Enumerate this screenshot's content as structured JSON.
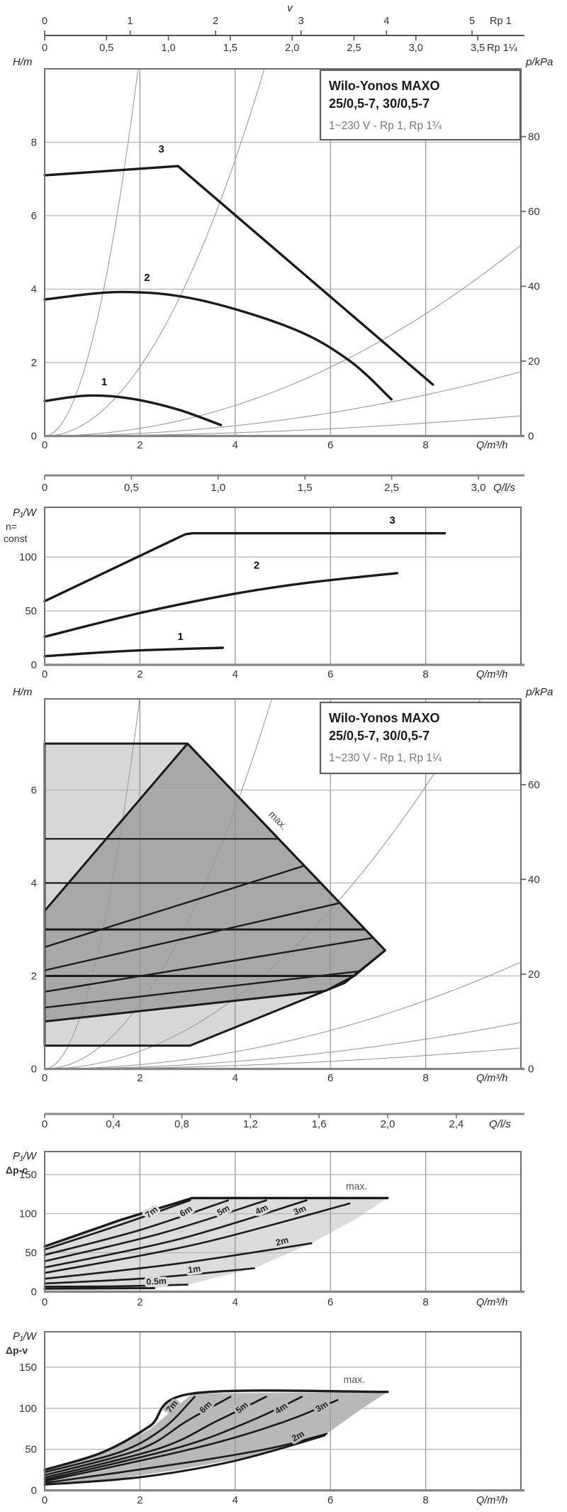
{
  "colors": {
    "ink": "#1b1b1b",
    "frame": "#6f6f6f",
    "grid_h": "#b5b5b5",
    "grid_v": "#8f8f8f",
    "thin_curve": "#9a9a9a",
    "label_gray": "#777777",
    "light_fill": "#d7d7d7",
    "dark_fill": "#a8a8a8",
    "region_dpc": "#dcdcdc",
    "region_dpv": "#b9b9b9"
  },
  "top_scales": {
    "v_label": "v",
    "rp1": {
      "unit": "Rp 1",
      "labels": [
        "0",
        "1",
        "2",
        "3",
        "4",
        "5"
      ]
    },
    "rp114": {
      "unit": "Rp 1¼",
      "labels": [
        "0",
        "0,5",
        "1,0",
        "1,5",
        "2,0",
        "2,5",
        "3,0",
        "3,5"
      ]
    }
  },
  "title_box": {
    "line1": "Wilo-Yonos MAXO",
    "line2": "25/0,5-7, 30/0,5-7",
    "line3": "1~230 V - Rp 1, Rp 1¼"
  },
  "ls_scales": [
    {
      "labels": [
        "0",
        "0,5",
        "1,0",
        "1,5",
        "2,5",
        "3,0"
      ],
      "unit": "Q/l/s"
    },
    {
      "labels": [
        "0",
        "0,4",
        "0,8",
        "1,2",
        "1,6",
        "2,0",
        "2,4"
      ],
      "unit": "Q/l/s"
    }
  ],
  "chart_data": [
    {
      "id": "head-flow",
      "type": "line",
      "ylabel": "H/m",
      "y2label": "p/kPa",
      "xlabel": "Q/m³/h",
      "xlim": [
        0,
        10
      ],
      "ylim": [
        0,
        10
      ],
      "xticks": [
        0,
        2,
        4,
        6,
        8
      ],
      "yticks": [
        2,
        4,
        6,
        8
      ],
      "y2ticks": [
        20,
        40,
        60,
        80
      ],
      "show_title_box": true,
      "system_curves_k": [
        2.6,
        0.47,
        0.052,
        0.0175,
        0.0055
      ],
      "series": [
        {
          "name": "1",
          "smooth": true,
          "points": [
            [
              0,
              0.95
            ],
            [
              0.9,
              1.1
            ],
            [
              1.8,
              1.02
            ],
            [
              2.8,
              0.72
            ],
            [
              3.7,
              0.3
            ]
          ],
          "label_at": [
            1.25,
            1.38
          ]
        },
        {
          "name": "2",
          "smooth": true,
          "points": [
            [
              0,
              3.72
            ],
            [
              1.6,
              3.92
            ],
            [
              3.2,
              3.72
            ],
            [
              5.2,
              2.93
            ],
            [
              6.4,
              2.05
            ],
            [
              7.28,
              1.0
            ]
          ],
          "label_at": [
            2.15,
            4.22
          ]
        },
        {
          "name": "3",
          "smooth": false,
          "points": [
            [
              0,
              7.1
            ],
            [
              2.8,
              7.35
            ],
            [
              8.15,
              1.4
            ]
          ],
          "label_at": [
            2.45,
            7.72
          ]
        }
      ]
    },
    {
      "id": "power-n-const",
      "type": "line",
      "ylabel": "P₁/W",
      "mode_label1": "n=",
      "mode_label2": "const",
      "xlabel": "Q/m³/h",
      "xlim": [
        0,
        10
      ],
      "ylim": [
        0,
        146
      ],
      "xticks": [
        0,
        2,
        4,
        6,
        8
      ],
      "yticks": [
        50,
        100
      ],
      "series": [
        {
          "name": "1",
          "smooth": true,
          "points": [
            [
              0,
              8
            ],
            [
              1.8,
              13
            ],
            [
              3.74,
              15.8
            ]
          ],
          "label_at": [
            2.85,
            23
          ]
        },
        {
          "name": "2",
          "smooth": true,
          "points": [
            [
              0,
              26
            ],
            [
              2,
              48
            ],
            [
              4,
              66
            ],
            [
              5.6,
              76.5
            ],
            [
              7.4,
              85
            ]
          ],
          "label_at": [
            4.45,
            89
          ]
        },
        {
          "name": "3",
          "smooth": false,
          "points": [
            [
              0,
              59
            ],
            [
              2.95,
              121
            ],
            [
              3.1,
              122
            ],
            [
              8.4,
              122
            ]
          ],
          "label_at": [
            7.3,
            131
          ]
        }
      ]
    },
    {
      "id": "duty-window",
      "type": "envelope",
      "ylabel": "H/m",
      "y2label": "p/kPa",
      "xlabel": "Q/m³/h",
      "xlim": [
        0,
        10
      ],
      "ylim": [
        0,
        7.96
      ],
      "xticks": [
        0,
        2,
        4,
        6,
        8
      ],
      "yticks": [
        2,
        4,
        6
      ],
      "y2ticks": [
        20,
        40,
        60
      ],
      "show_title_box": true,
      "system_curves_k": [
        2.0,
        0.35,
        0.095,
        0.023,
        0.01,
        0.0045
      ],
      "outer": [
        [
          0,
          7.0
        ],
        [
          3.0,
          7.0
        ],
        [
          7.15,
          2.55
        ],
        [
          6.3,
          1.85
        ],
        [
          3.05,
          0.5
        ],
        [
          0,
          0.5
        ]
      ],
      "inner": [
        [
          0,
          3.4
        ],
        [
          3.0,
          7.0
        ],
        [
          7.15,
          2.55
        ],
        [
          6.5,
          2.0
        ],
        [
          5.9,
          1.68
        ],
        [
          0,
          1.02
        ]
      ],
      "fan": [
        [
          [
            0,
            1.32
          ],
          [
            6.6,
            2.1
          ]
        ],
        [
          [
            0,
            1.66
          ],
          [
            6.9,
            2.82
          ]
        ],
        [
          [
            0,
            2.12
          ],
          [
            6.2,
            3.57
          ]
        ],
        [
          [
            0,
            2.62
          ],
          [
            5.45,
            4.37
          ]
        ]
      ],
      "hlines": [
        {
          "h": 2,
          "q2": 6.48,
          "w": 3
        },
        {
          "h": 3,
          "q2": 6.73,
          "w": 3
        },
        {
          "h": 4,
          "q2": 5.8,
          "w": 2.2
        },
        {
          "h": 4.95,
          "q2": 4.91,
          "w": 2.2
        }
      ],
      "max_label": {
        "text": "max.",
        "q": 4.85,
        "v": 5.3,
        "rot": 46
      }
    },
    {
      "id": "power-dpc",
      "type": "power-region",
      "ylabel": "P₁/W",
      "mode_label1": "Δp-c",
      "xlabel": "Q/m³/h",
      "xlim": [
        0,
        10
      ],
      "ylim": [
        0,
        178
      ],
      "xticks": [
        0,
        2,
        4,
        6,
        8
      ],
      "yticks": [
        50,
        100,
        150
      ],
      "region_fill_key": "region_dpc",
      "region": [
        [
          0,
          58
        ],
        [
          1.6,
          92
        ],
        [
          3.1,
          120
        ],
        [
          7.2,
          120
        ],
        [
          6.5,
          92
        ],
        [
          5.6,
          62
        ],
        [
          4.4,
          30
        ],
        [
          3.0,
          9
        ],
        [
          2.3,
          4.5
        ],
        [
          0,
          3.8
        ]
      ],
      "curves": [
        {
          "points": [
            [
              0,
              58
            ],
            [
              1.6,
              92
            ],
            [
              3.1,
              120
            ],
            [
              7.2,
              120
            ]
          ],
          "w": 3.4,
          "smooth": false
        },
        {
          "points": [
            [
              0,
              54
            ],
            [
              1.6,
              86
            ],
            [
              3.05,
              117
            ]
          ],
          "label": "7m",
          "label_at": [
            2.28,
            99
          ],
          "rot": -38
        },
        {
          "points": [
            [
              0,
              47
            ],
            [
              2.0,
              79
            ],
            [
              3.85,
              117
            ]
          ],
          "label": "6m",
          "label_at": [
            3.0,
            100
          ],
          "rot": -32
        },
        {
          "points": [
            [
              0,
              39
            ],
            [
              2.4,
              74
            ],
            [
              4.65,
              117
            ]
          ],
          "label": "5m",
          "label_at": [
            3.78,
            101
          ],
          "rot": -28
        },
        {
          "points": [
            [
              0,
              31
            ],
            [
              2.8,
              67
            ],
            [
              5.5,
              117
            ]
          ],
          "label": "4m",
          "label_at": [
            4.58,
            102
          ],
          "rot": -25
        },
        {
          "points": [
            [
              0,
              24
            ],
            [
              3.2,
              61
            ],
            [
              6.4,
              113
            ]
          ],
          "label": "3m",
          "label_at": [
            5.38,
            101
          ],
          "rot": -23
        },
        {
          "points": [
            [
              0,
              16.5
            ],
            [
              2.8,
              36
            ],
            [
              5.6,
              62
            ]
          ],
          "label": "2m",
          "label_at": [
            5.0,
            61
          ],
          "rot": -15
        },
        {
          "points": [
            [
              0,
              10.5
            ],
            [
              2.2,
              17.5
            ],
            [
              4.4,
              30
            ]
          ],
          "label": "1m",
          "label_at": [
            3.15,
            25
          ],
          "rot": -8
        },
        {
          "points": [
            [
              0,
              6.5
            ],
            [
              1.6,
              7
            ],
            [
              3.0,
              9
            ]
          ],
          "label": "0.5m",
          "label_at": [
            2.35,
            9.5
          ],
          "rot": -3
        },
        {
          "points": [
            [
              0,
              3.8
            ],
            [
              2.3,
              4.5
            ]
          ],
          "w": 3,
          "smooth": false
        }
      ],
      "max_label": {
        "text": "max.",
        "q": 6.55,
        "v": 131,
        "rot": 0
      }
    },
    {
      "id": "power-dpv",
      "type": "power-region",
      "ylabel": "P₁/W",
      "mode_label1": "Δp-v",
      "xlabel": "Q/m³/h",
      "xlim": [
        0,
        10
      ],
      "ylim": [
        0,
        193
      ],
      "xticks": [
        0,
        2,
        4,
        6,
        8
      ],
      "yticks": [
        50,
        100,
        150
      ],
      "region_fill_key": "region_dpv",
      "region": [
        [
          0,
          25
        ],
        [
          1.1,
          43
        ],
        [
          2.2,
          74
        ],
        [
          3.1,
          118
        ],
        [
          7.2,
          120
        ],
        [
          6.6,
          97
        ],
        [
          5.95,
          70
        ],
        [
          4.4,
          42
        ],
        [
          2.9,
          26
        ],
        [
          1.4,
          13
        ],
        [
          0,
          7
        ]
      ],
      "curves": [
        {
          "points": [
            [
              0,
              25
            ],
            [
              1.2,
              46
            ],
            [
              2.2,
              78
            ],
            [
              3.1,
              118
            ],
            [
              7.2,
              120
            ]
          ],
          "w": 3.4
        },
        {
          "points": [
            [
              0,
              22
            ],
            [
              1.6,
              47
            ],
            [
              2.5,
              76
            ],
            [
              3.15,
              114
            ]
          ],
          "label": "7m",
          "label_at": [
            2.72,
            100
          ],
          "rot": -52
        },
        {
          "points": [
            [
              0,
              18.5
            ],
            [
              2.0,
              50
            ],
            [
              3.0,
              85
            ],
            [
              3.9,
              114
            ]
          ],
          "label": "6m",
          "label_at": [
            3.42,
            99
          ],
          "rot": -44
        },
        {
          "points": [
            [
              0,
              15.5
            ],
            [
              2.4,
              51
            ],
            [
              3.6,
              84
            ],
            [
              4.65,
              114
            ]
          ],
          "label": "5m",
          "label_at": [
            4.18,
            98
          ],
          "rot": -38
        },
        {
          "points": [
            [
              0,
              13
            ],
            [
              2.8,
              52
            ],
            [
              4.3,
              84
            ],
            [
              5.4,
              114
            ]
          ],
          "label": "4m",
          "label_at": [
            5.0,
            97
          ],
          "rot": -34
        },
        {
          "points": [
            [
              0,
              11
            ],
            [
              3.2,
              52
            ],
            [
              5.0,
              83
            ],
            [
              6.15,
              110
            ]
          ],
          "label": "3m",
          "label_at": [
            5.85,
            99
          ],
          "rot": -31
        },
        {
          "points": [
            [
              0,
              9
            ],
            [
              3.0,
              34
            ],
            [
              4.8,
              52
            ],
            [
              5.92,
              69
            ]
          ],
          "label": "2m",
          "label_at": [
            5.35,
            63
          ],
          "rot": -29
        },
        {
          "points": [
            [
              0,
              7
            ],
            [
              2.0,
              16
            ],
            [
              4.0,
              36
            ],
            [
              5.88,
              67
            ]
          ],
          "w": 3
        }
      ],
      "max_label": {
        "text": "max.",
        "q": 6.5,
        "v": 131,
        "rot": 0
      }
    }
  ]
}
